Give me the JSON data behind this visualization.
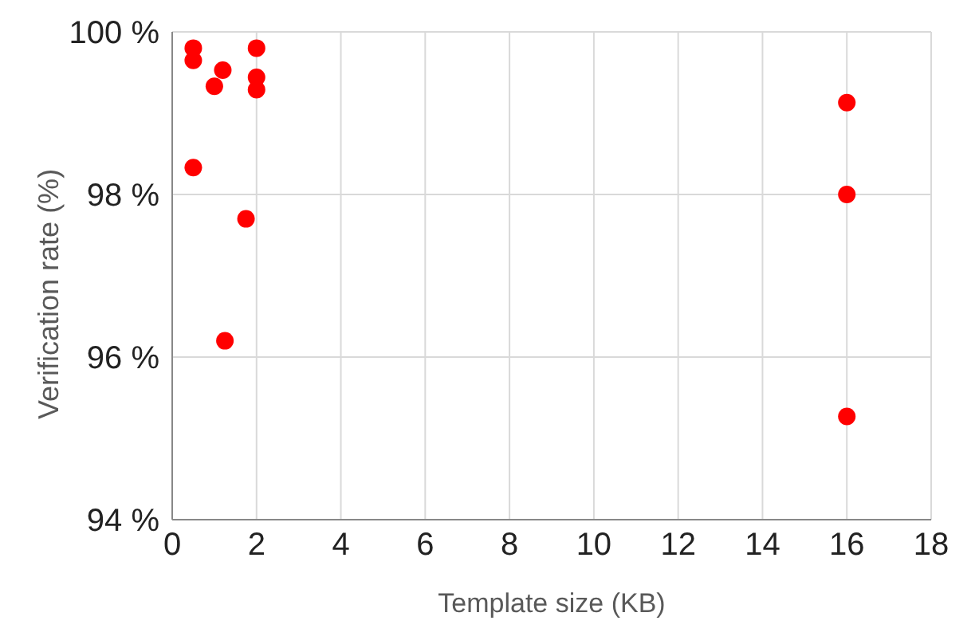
{
  "chart_data": {
    "type": "scatter",
    "xlabel": "Template size (KB)",
    "ylabel": "Verification rate (%)",
    "x": [
      0.5,
      0.5,
      0.5,
      1,
      1.2,
      1.25,
      1.75,
      2,
      2,
      2,
      16,
      16,
      16
    ],
    "values": [
      99.8,
      99.65,
      98.33,
      99.33,
      99.53,
      96.2,
      97.7,
      99.8,
      99.44,
      99.29,
      99.13,
      98.0,
      95.27
    ],
    "color": "#ff0000",
    "marker": "circle",
    "xlim": [
      0,
      18
    ],
    "xticks": [
      0,
      2,
      4,
      6,
      8,
      10,
      12,
      14,
      16,
      18
    ],
    "ylim": [
      94,
      100
    ],
    "yticks": [
      {
        "value": 94,
        "label": "94 %"
      },
      {
        "value": 96,
        "label": "96 %"
      },
      {
        "value": 98,
        "label": "98 %"
      },
      {
        "value": 100,
        "label": "100 %"
      }
    ],
    "grid": true
  }
}
